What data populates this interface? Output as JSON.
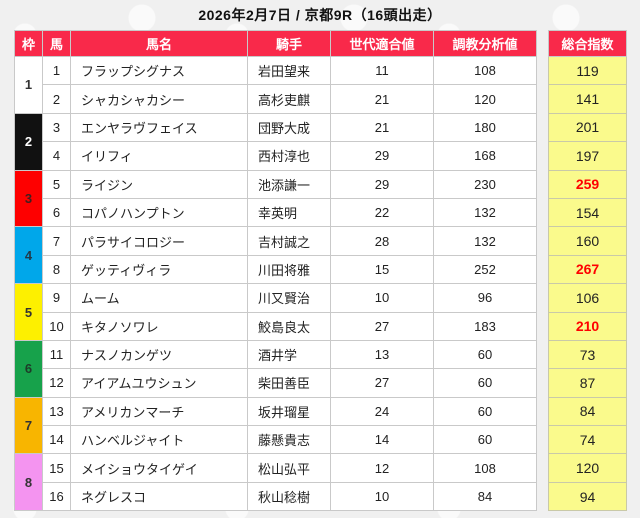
{
  "title": "2026年2月7日 / 京都9R（16頭出走）",
  "colors": {
    "header_bg": "#f9294a",
    "header_text": "#ffffff",
    "total_column_bg": "#fafa8c",
    "hot_value_text": "#ff0000",
    "cell_border": "#c9c9c9",
    "page_bg": "#f0f0f0"
  },
  "table": {
    "headers": {
      "frame": "枠",
      "number": "馬",
      "name": "馬名",
      "jockey": "騎手",
      "generation": "世代適合値",
      "training": "調教分析値",
      "total": "総合指数"
    },
    "frames": [
      {
        "no": "1",
        "color": "#ffffff",
        "text": "#333333"
      },
      {
        "no": "2",
        "color": "#111111",
        "text": "#ffffff"
      },
      {
        "no": "3",
        "color": "#fe0000",
        "text": "#402020"
      },
      {
        "no": "4",
        "color": "#00a7ea",
        "text": "#223a4a"
      },
      {
        "no": "5",
        "color": "#fdf000",
        "text": "#333333"
      },
      {
        "no": "6",
        "color": "#17a24b",
        "text": "#1e3c29"
      },
      {
        "no": "7",
        "color": "#f8b500",
        "text": "#333333"
      },
      {
        "no": "8",
        "color": "#f494f0",
        "text": "#333333"
      }
    ],
    "rows": [
      {
        "num": "1",
        "name": "フラップシグナス",
        "jockey": "岩田望来",
        "gen": "11",
        "train": "108",
        "total": "119",
        "hot": false
      },
      {
        "num": "2",
        "name": "シャカシャカシー",
        "jockey": "高杉吏麒",
        "gen": "21",
        "train": "120",
        "total": "141",
        "hot": false
      },
      {
        "num": "3",
        "name": "エンヤラヴフェイス",
        "jockey": "団野大成",
        "gen": "21",
        "train": "180",
        "total": "201",
        "hot": false
      },
      {
        "num": "4",
        "name": "イリフィ",
        "jockey": "西村淳也",
        "gen": "29",
        "train": "168",
        "total": "197",
        "hot": false
      },
      {
        "num": "5",
        "name": "ライジン",
        "jockey": "池添謙一",
        "gen": "29",
        "train": "230",
        "total": "259",
        "hot": true
      },
      {
        "num": "6",
        "name": "コパノハンプトン",
        "jockey": "幸英明",
        "gen": "22",
        "train": "132",
        "total": "154",
        "hot": false
      },
      {
        "num": "7",
        "name": "パラサイコロジー",
        "jockey": "吉村誠之",
        "gen": "28",
        "train": "132",
        "total": "160",
        "hot": false
      },
      {
        "num": "8",
        "name": "ゲッティヴィラ",
        "jockey": "川田将雅",
        "gen": "15",
        "train": "252",
        "total": "267",
        "hot": true
      },
      {
        "num": "9",
        "name": "ムーム",
        "jockey": "川又賢治",
        "gen": "10",
        "train": "96",
        "total": "106",
        "hot": false
      },
      {
        "num": "10",
        "name": "キタノソワレ",
        "jockey": "鮫島良太",
        "gen": "27",
        "train": "183",
        "total": "210",
        "hot": true
      },
      {
        "num": "11",
        "name": "ナスノカンゲツ",
        "jockey": "酒井学",
        "gen": "13",
        "train": "60",
        "total": "73",
        "hot": false
      },
      {
        "num": "12",
        "name": "アイアムユウシュン",
        "jockey": "柴田善臣",
        "gen": "27",
        "train": "60",
        "total": "87",
        "hot": false
      },
      {
        "num": "13",
        "name": "アメリカンマーチ",
        "jockey": "坂井瑠星",
        "gen": "24",
        "train": "60",
        "total": "84",
        "hot": false
      },
      {
        "num": "14",
        "name": "ハンベルジャイト",
        "jockey": "藤懸貴志",
        "gen": "14",
        "train": "60",
        "total": "74",
        "hot": false
      },
      {
        "num": "15",
        "name": "メイショウタイゲイ",
        "jockey": "松山弘平",
        "gen": "12",
        "train": "108",
        "total": "120",
        "hot": false
      },
      {
        "num": "16",
        "name": "ネグレスコ",
        "jockey": "秋山稔樹",
        "gen": "10",
        "train": "84",
        "total": "94",
        "hot": false
      }
    ]
  }
}
